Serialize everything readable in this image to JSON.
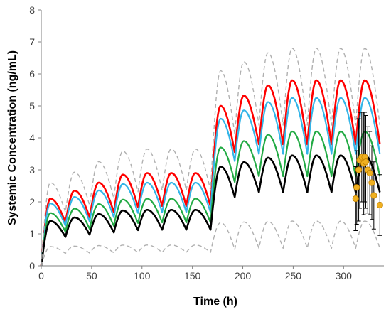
{
  "chart_data": {
    "type": "line",
    "title": "",
    "xlabel": "Time (h)",
    "ylabel": "Systemic Concentration (ng/mL)",
    "xlim": [
      0,
      340
    ],
    "ylim": [
      0,
      8
    ],
    "xticks": [
      0,
      50,
      100,
      150,
      200,
      250,
      300
    ],
    "yticks": [
      0,
      1,
      2,
      3,
      4,
      5,
      6,
      7,
      8
    ],
    "grid": false,
    "legend": "none",
    "dosing": {
      "interval_h": 24,
      "phase1_end_h": 168,
      "phase1_troughs_after_first": [
        0.62,
        0.79,
        0.86,
        0.89,
        0.91,
        0.92
      ],
      "phase1_peak_to_trough_ratio": 1.55,
      "phase2_first_peak_time_h": 178,
      "phase2_trough_ratio_after_first": 0.935
    },
    "series": [
      {
        "color": "#ff0000",
        "dash": "solid",
        "width": 2.6,
        "first_peak": 2.1,
        "phase1_steady_peak": 2.9,
        "phase2_first_peak": 5.0,
        "phase2_steady_peak": 5.8,
        "phase2_steady_trough": 3.8,
        "end_value": 3.8
      },
      {
        "color": "#33b5e8",
        "dash": "solid",
        "width": 2.2,
        "first_peak": 1.95,
        "phase1_steady_peak": 2.6,
        "phase2_first_peak": 4.6,
        "phase2_steady_peak": 5.25,
        "phase2_steady_trough": 3.5,
        "end_value": 3.4
      },
      {
        "color": "#22aa44",
        "dash": "solid",
        "width": 2.2,
        "first_peak": 1.65,
        "phase1_steady_peak": 2.1,
        "phase2_first_peak": 3.7,
        "phase2_steady_peak": 4.2,
        "phase2_steady_trough": 2.8,
        "end_value": 2.75
      },
      {
        "color": "#000000",
        "dash": "solid",
        "width": 2.6,
        "first_peak": 1.4,
        "phase1_steady_peak": 1.75,
        "phase2_first_peak": 3.1,
        "phase2_steady_peak": 3.45,
        "phase2_steady_trough": 2.3,
        "end_value": 2.3
      },
      {
        "color": "#b0b0b0",
        "dash": "dashed",
        "width": 1.4,
        "first_peak": 2.6,
        "phase1_steady_peak": 3.65,
        "phase2_first_peak": 6.1,
        "phase2_steady_peak": 6.8,
        "phase2_steady_trough": 4.4,
        "end_value": 4.5
      },
      {
        "color": "#b0b0b0",
        "dash": "dashed",
        "width": 1.4,
        "first_peak": 0.6,
        "phase1_steady_peak": 0.65,
        "phase2_first_peak": 1.35,
        "phase2_steady_peak": 1.4,
        "phase2_steady_trough": 0.55,
        "end_value": 0.6
      }
    ],
    "observed": {
      "marker_color": "#f0b020",
      "marker_edge": "#c08000",
      "errorbar_color": "#000000",
      "x": [
        312,
        313,
        315,
        316,
        318,
        320,
        321,
        322,
        324,
        326,
        328,
        330,
        336
      ],
      "y": [
        2.1,
        2.45,
        3.0,
        3.3,
        3.4,
        3.2,
        3.4,
        3.25,
        3.0,
        2.9,
        2.6,
        2.2,
        1.9
      ],
      "err": [
        1.0,
        1.15,
        1.6,
        1.5,
        1.4,
        1.6,
        1.4,
        1.45,
        1.35,
        1.3,
        1.15,
        1.05,
        0.95
      ]
    }
  }
}
